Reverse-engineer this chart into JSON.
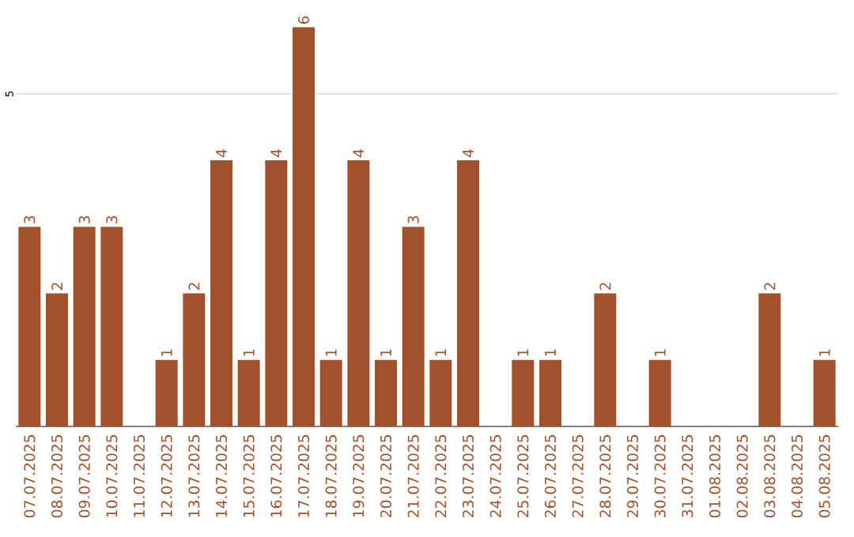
{
  "chart_data": {
    "type": "bar",
    "categories": [
      "07.07.2025",
      "08.07.2025",
      "09.07.2025",
      "10.07.2025",
      "11.07.2025",
      "12.07.2025",
      "13.07.2025",
      "14.07.2025",
      "15.07.2025",
      "16.07.2025",
      "17.07.2025",
      "18.07.2025",
      "19.07.2025",
      "20.07.2025",
      "21.07.2025",
      "22.07.2025",
      "23.07.2025",
      "24.07.2025",
      "25.07.2025",
      "26.07.2025",
      "27.07.2025",
      "28.07.2025",
      "29.07.2025",
      "30.07.2025",
      "31.07.2025",
      "01.08.2025",
      "02.08.2025",
      "03.08.2025",
      "04.08.2025",
      "05.08.2025"
    ],
    "values": [
      3,
      2,
      3,
      3,
      0,
      1,
      2,
      4,
      1,
      4,
      6,
      1,
      4,
      1,
      3,
      1,
      4,
      0,
      1,
      1,
      0,
      2,
      0,
      1,
      0,
      0,
      0,
      2,
      0,
      1
    ],
    "value_labels": [
      "3",
      "2",
      "3",
      "3",
      null,
      "1",
      "2",
      "4",
      "1",
      "4",
      "6",
      "1",
      "4",
      "1",
      "3",
      "1",
      "4",
      null,
      "1",
      "1",
      null,
      "2",
      null,
      "1",
      null,
      null,
      null,
      "2",
      null,
      "1"
    ],
    "color": "#a0522d",
    "ref_lines": [
      {
        "axis": "y",
        "value": 5,
        "label": "5",
        "color": "#cccccc"
      }
    ]
  }
}
